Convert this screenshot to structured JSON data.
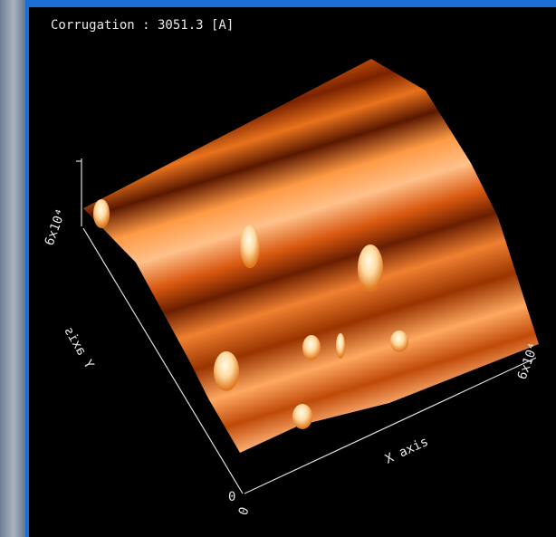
{
  "header": {
    "title": "Corrugation : 3051.3 [A]"
  },
  "axes": {
    "z": {
      "tick_label": "6x10⁴"
    },
    "y": {
      "label": "Y axis",
      "origin_label": "0"
    },
    "x": {
      "label": "X axis",
      "origin_label": "0",
      "tick_label": "6x10⁴"
    }
  }
}
